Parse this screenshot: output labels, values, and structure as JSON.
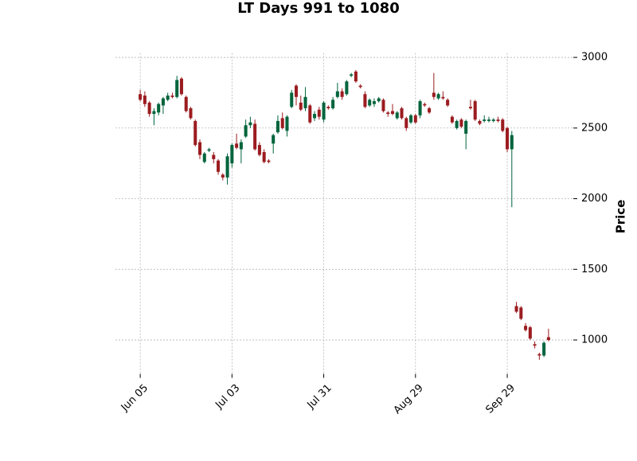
{
  "chart_data": {
    "type": "candlestick",
    "title": "LT Days 991 to 1080",
    "y_label": "Price",
    "categories": [
      "Jun 05",
      null,
      null,
      null,
      null,
      null,
      null,
      null,
      null,
      null,
      null,
      null,
      null,
      null,
      null,
      null,
      null,
      null,
      null,
      null,
      "Jul 03",
      null,
      null,
      null,
      null,
      null,
      null,
      null,
      null,
      null,
      null,
      null,
      null,
      null,
      null,
      null,
      null,
      null,
      null,
      null,
      "Jul 31",
      null,
      null,
      null,
      null,
      null,
      null,
      null,
      null,
      null,
      null,
      null,
      null,
      null,
      null,
      null,
      null,
      null,
      null,
      null,
      "Aug 29",
      null,
      null,
      null,
      null,
      null,
      null,
      null,
      null,
      null,
      null,
      null,
      null,
      null,
      null,
      null,
      null,
      null,
      null,
      null,
      "Sep 29",
      null,
      null,
      null,
      null,
      null,
      null,
      null,
      null,
      null
    ],
    "open": [
      2740,
      2730,
      2680,
      2600,
      2610,
      2660,
      2700,
      2730,
      2720,
      2850,
      2720,
      2640,
      2550,
      2400,
      2260,
      2340,
      2310,
      2270,
      2170,
      2150,
      2250,
      2390,
      2350,
      2440,
      2520,
      2530,
      2380,
      2330,
      2270,
      2390,
      2470,
      2570,
      2480,
      2650,
      2800,
      2680,
      2640,
      2660,
      2570,
      2630,
      2560,
      2650,
      2640,
      2720,
      2760,
      2740,
      2870,
      2900,
      2800,
      2740,
      2660,
      2670,
      2690,
      2700,
      2610,
      2620,
      2570,
      2640,
      2570,
      2540,
      2590,
      2590,
      2670,
      2640,
      2750,
      2710,
      2720,
      2700,
      2580,
      2500,
      2560,
      2460,
      2650,
      2690,
      2550,
      2550,
      2550,
      2550,
      2560,
      2560,
      2500,
      2350,
      1240,
      1230,
      1100,
      1090,
      970,
      900,
      890,
      1020
    ],
    "high": [
      2770,
      2760,
      2690,
      2640,
      2680,
      2720,
      2750,
      2750,
      2870,
      2860,
      2730,
      2650,
      2560,
      2420,
      2330,
      2360,
      2330,
      2280,
      2180,
      2320,
      2390,
      2460,
      2420,
      2560,
      2580,
      2560,
      2400,
      2350,
      2280,
      2460,
      2590,
      2610,
      2590,
      2770,
      2810,
      2730,
      2790,
      2670,
      2620,
      2650,
      2690,
      2660,
      2720,
      2820,
      2780,
      2840,
      2890,
      2910,
      2810,
      2760,
      2710,
      2710,
      2720,
      2710,
      2620,
      2670,
      2620,
      2650,
      2580,
      2600,
      2600,
      2700,
      2680,
      2650,
      2890,
      2750,
      2760,
      2710,
      2590,
      2560,
      2570,
      2560,
      2700,
      2700,
      2560,
      2590,
      2580,
      2570,
      2580,
      2570,
      2510,
      2480,
      1270,
      1240,
      1120,
      1100,
      990,
      910,
      990,
      1080
    ],
    "low": [
      2690,
      2650,
      2580,
      2520,
      2590,
      2600,
      2690,
      2710,
      2710,
      2730,
      2610,
      2560,
      2370,
      2280,
      2250,
      2330,
      2250,
      2170,
      2130,
      2100,
      2220,
      2350,
      2250,
      2430,
      2500,
      2340,
      2300,
      2250,
      2250,
      2320,
      2460,
      2490,
      2440,
      2640,
      2660,
      2620,
      2620,
      2530,
      2550,
      2560,
      2540,
      2630,
      2630,
      2710,
      2700,
      2730,
      2860,
      2820,
      2780,
      2640,
      2650,
      2650,
      2680,
      2610,
      2580,
      2590,
      2560,
      2560,
      2480,
      2530,
      2530,
      2570,
      2650,
      2600,
      2700,
      2700,
      2700,
      2650,
      2530,
      2490,
      2500,
      2350,
      2630,
      2550,
      2520,
      2540,
      2540,
      2540,
      2540,
      2470,
      2330,
      1940,
      1190,
      1140,
      1060,
      1000,
      940,
      860,
      880,
      990
    ],
    "close": [
      2700,
      2670,
      2600,
      2620,
      2670,
      2710,
      2730,
      2720,
      2840,
      2740,
      2620,
      2570,
      2380,
      2310,
      2320,
      2350,
      2280,
      2190,
      2150,
      2300,
      2380,
      2360,
      2400,
      2520,
      2540,
      2350,
      2310,
      2260,
      2260,
      2450,
      2550,
      2500,
      2580,
      2750,
      2720,
      2630,
      2720,
      2540,
      2600,
      2580,
      2680,
      2640,
      2700,
      2760,
      2720,
      2830,
      2880,
      2830,
      2790,
      2650,
      2700,
      2690,
      2710,
      2620,
      2600,
      2600,
      2610,
      2570,
      2500,
      2590,
      2540,
      2690,
      2660,
      2610,
      2720,
      2740,
      2710,
      2660,
      2540,
      2550,
      2510,
      2550,
      2640,
      2560,
      2530,
      2560,
      2560,
      2560,
      2550,
      2480,
      2350,
      2450,
      1200,
      1150,
      1070,
      1010,
      960,
      890,
      980,
      1000
    ],
    "up_color": "#00643c",
    "down_color": "#9b1c20",
    "ylim": [
      760,
      3200
    ],
    "yticks": [
      1000,
      1500,
      2000,
      2500,
      3000
    ],
    "grid": true
  }
}
